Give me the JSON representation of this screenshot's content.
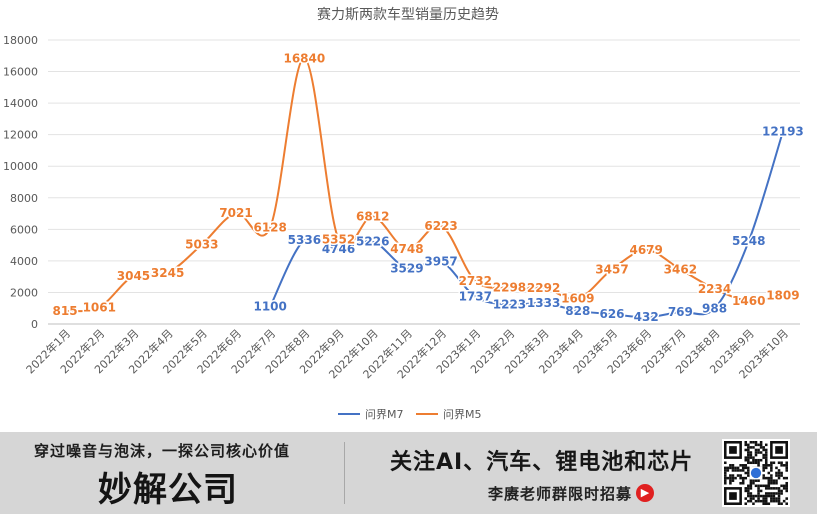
{
  "chart_data": {
    "type": "line",
    "title": "赛力斯两款车型销量历史趋势",
    "categories": [
      "2022年1月",
      "2022年2月",
      "2022年3月",
      "2022年4月",
      "2022年5月",
      "2022年6月",
      "2022年7月",
      "2022年8月",
      "2022年9月",
      "2022年10月",
      "2022年11月",
      "2022年12月",
      "2023年1月",
      "2023年2月",
      "2023年3月",
      "2023年4月",
      "2023年5月",
      "2023年6月",
      "2023年7月",
      "2023年8月",
      "2023年9月",
      "2023年10月"
    ],
    "ylim": [
      0,
      18000
    ],
    "yticks": [
      "0",
      "2000",
      "4000",
      "6000",
      "8000",
      "10000",
      "12000",
      "14000",
      "16000",
      "18000"
    ],
    "grid": true,
    "legend_position": "bottom",
    "series": [
      {
        "name": "问界M7",
        "color": "#4472c4",
        "values": [
          null,
          null,
          null,
          null,
          null,
          null,
          1100,
          5336,
          4746,
          5226,
          3529,
          3957,
          1737,
          1223,
          1333,
          828,
          626,
          432,
          769,
          988,
          5248,
          12193
        ]
      },
      {
        "name": "问界M5",
        "color": "#ed7d31",
        "values": [
          815,
          1061,
          3045,
          3245,
          5033,
          7021,
          6128,
          16840,
          5352,
          6812,
          4748,
          6223,
          2732,
          2298,
          2292,
          1609,
          3457,
          4679,
          3462,
          2234,
          1460,
          1809
        ]
      }
    ]
  },
  "banner": {
    "slogan": "穿过噪音与泡沫，一探公司核心价值",
    "logo": "妙解公司",
    "headline": "关注AI、汽车、锂电池和芯片",
    "cta": "李赓老师群限时招募"
  }
}
